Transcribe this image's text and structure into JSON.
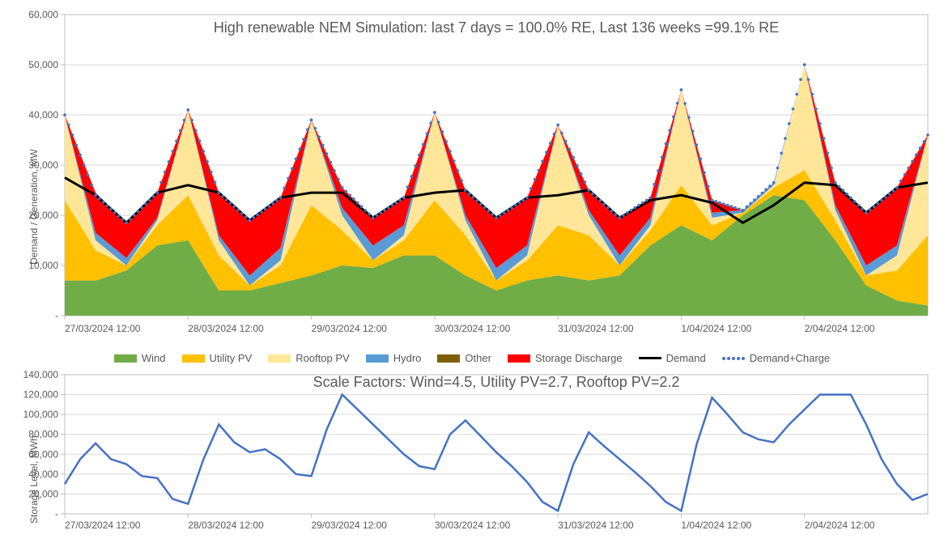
{
  "top_chart": {
    "type": "stacked-area",
    "title": "High renewable NEM Simulation: last 7 days = 100.0% RE, Last 136 weeks =99.1% RE",
    "ylabel": "Demand / Generation, MW",
    "title_fontsize": 18,
    "label_fontsize": 12,
    "background_color": "#ffffff",
    "grid_color": "#d9d9d9",
    "axis_color": "#bfbfbf",
    "text_color": "#595959",
    "ylim": [
      0,
      60000
    ],
    "ytick_step": 10000,
    "yticks": [
      "-",
      "10,000",
      "20,000",
      "30,000",
      "40,000",
      "50,000",
      "60,000"
    ],
    "xlim": [
      0,
      168
    ],
    "xtick_step": 24,
    "xticks": [
      "27/03/2024 12:00",
      "28/03/2024 12:00",
      "29/03/2024 12:00",
      "30/03/2024 12:00",
      "31/03/2024 12:00",
      "1/04/2024 12:00",
      "2/04/2024 12:00"
    ],
    "series_order": [
      "wind",
      "utility_pv",
      "rooftop_pv",
      "hydro",
      "other",
      "storage_discharge"
    ],
    "colors": {
      "wind": "#70ad47",
      "utility_pv": "#ffc000",
      "rooftop_pv": "#ffe699",
      "hydro": "#5b9bd5",
      "other": "#7f6000",
      "storage_discharge": "#ff0000",
      "demand": "#000000",
      "demand_charge": "#4472c4"
    },
    "line_width_demand": 3,
    "marker_demand_charge": "dotted",
    "points": [
      {
        "x": 0,
        "wind": 7000,
        "utility_pv": 16000,
        "rooftop_pv": 17000,
        "hydro": 0,
        "other": 0,
        "storage": 0,
        "demand": 27500,
        "demand_charge": 40000
      },
      {
        "x": 6,
        "wind": 7000,
        "utility_pv": 6000,
        "rooftop_pv": 2000,
        "hydro": 1500,
        "other": 0,
        "storage": 8000,
        "demand": 24000,
        "demand_charge": 24000
      },
      {
        "x": 12,
        "wind": 9000,
        "utility_pv": 1000,
        "rooftop_pv": 0,
        "hydro": 1500,
        "other": 0,
        "storage": 7000,
        "demand": 18500,
        "demand_charge": 18500
      },
      {
        "x": 18,
        "wind": 14000,
        "utility_pv": 4000,
        "rooftop_pv": 1000,
        "hydro": 500,
        "other": 0,
        "storage": 5000,
        "demand": 24500,
        "demand_charge": 24500
      },
      {
        "x": 24,
        "wind": 15000,
        "utility_pv": 9000,
        "rooftop_pv": 17000,
        "hydro": 0,
        "other": 0,
        "storage": 0,
        "demand": 26000,
        "demand_charge": 41000
      },
      {
        "x": 30,
        "wind": 5000,
        "utility_pv": 7000,
        "rooftop_pv": 3000,
        "hydro": 1000,
        "other": 0,
        "storage": 8500,
        "demand": 24500,
        "demand_charge": 24500
      },
      {
        "x": 36,
        "wind": 5000,
        "utility_pv": 1000,
        "rooftop_pv": 0,
        "hydro": 2000,
        "other": 0,
        "storage": 11000,
        "demand": 19000,
        "demand_charge": 19000
      },
      {
        "x": 42,
        "wind": 6500,
        "utility_pv": 3500,
        "rooftop_pv": 1000,
        "hydro": 2500,
        "other": 0,
        "storage": 10000,
        "demand": 23500,
        "demand_charge": 23500
      },
      {
        "x": 48,
        "wind": 8000,
        "utility_pv": 14000,
        "rooftop_pv": 17000,
        "hydro": 0,
        "other": 0,
        "storage": 0,
        "demand": 24500,
        "demand_charge": 39000
      },
      {
        "x": 54,
        "wind": 10000,
        "utility_pv": 7000,
        "rooftop_pv": 3000,
        "hydro": 1500,
        "other": 0,
        "storage": 4000,
        "demand": 24500,
        "demand_charge": 25500
      },
      {
        "x": 60,
        "wind": 9500,
        "utility_pv": 1500,
        "rooftop_pv": 0,
        "hydro": 3000,
        "other": 0,
        "storage": 5500,
        "demand": 19500,
        "demand_charge": 19500
      },
      {
        "x": 66,
        "wind": 12000,
        "utility_pv": 3000,
        "rooftop_pv": 1000,
        "hydro": 2000,
        "other": 0,
        "storage": 5500,
        "demand": 23500,
        "demand_charge": 23500
      },
      {
        "x": 72,
        "wind": 12000,
        "utility_pv": 11000,
        "rooftop_pv": 17500,
        "hydro": 0,
        "other": 0,
        "storage": 0,
        "demand": 24500,
        "demand_charge": 40500
      },
      {
        "x": 78,
        "wind": 8000,
        "utility_pv": 8000,
        "rooftop_pv": 3000,
        "hydro": 1000,
        "other": 0,
        "storage": 5000,
        "demand": 25000,
        "demand_charge": 25000
      },
      {
        "x": 84,
        "wind": 5000,
        "utility_pv": 2000,
        "rooftop_pv": 0,
        "hydro": 2500,
        "other": 0,
        "storage": 10000,
        "demand": 19500,
        "demand_charge": 19500
      },
      {
        "x": 90,
        "wind": 7000,
        "utility_pv": 4000,
        "rooftop_pv": 1000,
        "hydro": 2000,
        "other": 0,
        "storage": 9500,
        "demand": 23500,
        "demand_charge": 23500
      },
      {
        "x": 96,
        "wind": 8000,
        "utility_pv": 10000,
        "rooftop_pv": 20000,
        "hydro": 0,
        "other": 0,
        "storage": 0,
        "demand": 24000,
        "demand_charge": 38000
      },
      {
        "x": 102,
        "wind": 7000,
        "utility_pv": 9000,
        "rooftop_pv": 4000,
        "hydro": 1000,
        "other": 0,
        "storage": 4000,
        "demand": 25000,
        "demand_charge": 25000
      },
      {
        "x": 108,
        "wind": 8000,
        "utility_pv": 2000,
        "rooftop_pv": 0,
        "hydro": 2000,
        "other": 0,
        "storage": 7500,
        "demand": 19500,
        "demand_charge": 19500
      },
      {
        "x": 114,
        "wind": 14000,
        "utility_pv": 3000,
        "rooftop_pv": 1000,
        "hydro": 1500,
        "other": 0,
        "storage": 4000,
        "demand": 23000,
        "demand_charge": 23500
      },
      {
        "x": 120,
        "wind": 18000,
        "utility_pv": 8000,
        "rooftop_pv": 19000,
        "hydro": 0,
        "other": 0,
        "storage": 0,
        "demand": 24000,
        "demand_charge": 45000
      },
      {
        "x": 126,
        "wind": 15000,
        "utility_pv": 3000,
        "rooftop_pv": 1500,
        "hydro": 1000,
        "other": 0,
        "storage": 2500,
        "demand": 22500,
        "demand_charge": 23000
      },
      {
        "x": 132,
        "wind": 20000,
        "utility_pv": 500,
        "rooftop_pv": 0,
        "hydro": 500,
        "other": 0,
        "storage": 0,
        "demand": 18500,
        "demand_charge": 21000
      },
      {
        "x": 138,
        "wind": 24000,
        "utility_pv": 1500,
        "rooftop_pv": 500,
        "hydro": 500,
        "other": 0,
        "storage": 0,
        "demand": 22000,
        "demand_charge": 26500
      },
      {
        "x": 144,
        "wind": 23000,
        "utility_pv": 6000,
        "rooftop_pv": 21000,
        "hydro": 0,
        "other": 0,
        "storage": 0,
        "demand": 26500,
        "demand_charge": 50000
      },
      {
        "x": 150,
        "wind": 15000,
        "utility_pv": 4000,
        "rooftop_pv": 2000,
        "hydro": 1000,
        "other": 0,
        "storage": 4500,
        "demand": 26000,
        "demand_charge": 26500
      },
      {
        "x": 156,
        "wind": 6000,
        "utility_pv": 2000,
        "rooftop_pv": 0,
        "hydro": 2000,
        "other": 0,
        "storage": 10500,
        "demand": 20500,
        "demand_charge": 20500
      },
      {
        "x": 162,
        "wind": 3000,
        "utility_pv": 6000,
        "rooftop_pv": 3000,
        "hydro": 2000,
        "other": 0,
        "storage": 11500,
        "demand": 25500,
        "demand_charge": 25500
      },
      {
        "x": 168,
        "wind": 2000,
        "utility_pv": 14000,
        "rooftop_pv": 20000,
        "hydro": 0,
        "other": 0,
        "storage": 0,
        "demand": 26500,
        "demand_charge": 36000
      }
    ],
    "legend": [
      {
        "label": "Wind",
        "type": "swatch",
        "color_key": "wind"
      },
      {
        "label": "Utility PV",
        "type": "swatch",
        "color_key": "utility_pv"
      },
      {
        "label": "Rooftop PV",
        "type": "swatch",
        "color_key": "rooftop_pv"
      },
      {
        "label": "Hydro",
        "type": "swatch",
        "color_key": "hydro"
      },
      {
        "label": "Other",
        "type": "swatch",
        "color_key": "other"
      },
      {
        "label": "Storage Discharge",
        "type": "swatch",
        "color_key": "storage_discharge"
      },
      {
        "label": "Demand",
        "type": "line",
        "color_key": "demand"
      },
      {
        "label": "Demand+Charge",
        "type": "dots",
        "color_key": "demand_charge"
      }
    ]
  },
  "bottom_chart": {
    "type": "line",
    "title": "Scale Factors: Wind=4.5, Utility PV=2.7, Rooftop PV=2.2",
    "ylabel": "Storage Level, MWh",
    "title_fontsize": 18,
    "label_fontsize": 12,
    "background_color": "#ffffff",
    "grid_color": "#d9d9d9",
    "axis_color": "#bfbfbf",
    "text_color": "#595959",
    "line_color": "#4472c4",
    "line_width": 2.5,
    "ylim": [
      0,
      140000
    ],
    "ytick_step": 20000,
    "yticks": [
      "-",
      "20,000",
      "40,000",
      "60,000",
      "80,000",
      "100,000",
      "120,000",
      "140,000"
    ],
    "xlim": [
      0,
      168
    ],
    "xtick_step": 24,
    "xticks": [
      "27/03/2024 12:00",
      "28/03/2024 12:00",
      "29/03/2024 12:00",
      "30/03/2024 12:00",
      "31/03/2024 12:00",
      "1/04/2024 12:00",
      "2/04/2024 12:00"
    ],
    "points": [
      {
        "x": 0,
        "y": 30000
      },
      {
        "x": 3,
        "y": 55000
      },
      {
        "x": 6,
        "y": 71000
      },
      {
        "x": 9,
        "y": 55000
      },
      {
        "x": 12,
        "y": 50000
      },
      {
        "x": 15,
        "y": 38000
      },
      {
        "x": 18,
        "y": 36000
      },
      {
        "x": 21,
        "y": 15000
      },
      {
        "x": 24,
        "y": 10000
      },
      {
        "x": 27,
        "y": 55000
      },
      {
        "x": 30,
        "y": 90000
      },
      {
        "x": 33,
        "y": 72000
      },
      {
        "x": 36,
        "y": 62000
      },
      {
        "x": 39,
        "y": 65000
      },
      {
        "x": 42,
        "y": 55000
      },
      {
        "x": 45,
        "y": 40000
      },
      {
        "x": 48,
        "y": 38000
      },
      {
        "x": 51,
        "y": 85000
      },
      {
        "x": 54,
        "y": 120000
      },
      {
        "x": 57,
        "y": 105000
      },
      {
        "x": 60,
        "y": 90000
      },
      {
        "x": 63,
        "y": 75000
      },
      {
        "x": 66,
        "y": 60000
      },
      {
        "x": 69,
        "y": 48000
      },
      {
        "x": 72,
        "y": 45000
      },
      {
        "x": 75,
        "y": 80000
      },
      {
        "x": 78,
        "y": 94000
      },
      {
        "x": 81,
        "y": 78000
      },
      {
        "x": 84,
        "y": 62000
      },
      {
        "x": 87,
        "y": 48000
      },
      {
        "x": 90,
        "y": 32000
      },
      {
        "x": 93,
        "y": 12000
      },
      {
        "x": 96,
        "y": 3000
      },
      {
        "x": 99,
        "y": 50000
      },
      {
        "x": 102,
        "y": 82000
      },
      {
        "x": 105,
        "y": 68000
      },
      {
        "x": 108,
        "y": 55000
      },
      {
        "x": 111,
        "y": 42000
      },
      {
        "x": 114,
        "y": 28000
      },
      {
        "x": 117,
        "y": 12000
      },
      {
        "x": 120,
        "y": 3000
      },
      {
        "x": 123,
        "y": 70000
      },
      {
        "x": 126,
        "y": 117000
      },
      {
        "x": 129,
        "y": 100000
      },
      {
        "x": 132,
        "y": 82000
      },
      {
        "x": 135,
        "y": 75000
      },
      {
        "x": 138,
        "y": 72000
      },
      {
        "x": 141,
        "y": 90000
      },
      {
        "x": 144,
        "y": 105000
      },
      {
        "x": 147,
        "y": 120000
      },
      {
        "x": 150,
        "y": 120000
      },
      {
        "x": 153,
        "y": 120000
      },
      {
        "x": 156,
        "y": 90000
      },
      {
        "x": 159,
        "y": 55000
      },
      {
        "x": 162,
        "y": 30000
      },
      {
        "x": 165,
        "y": 14000
      },
      {
        "x": 168,
        "y": 20000
      }
    ]
  }
}
